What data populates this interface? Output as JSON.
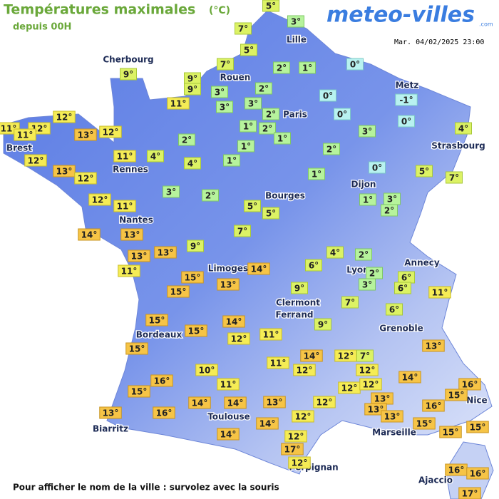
{
  "header": {
    "title": "Températures maximales",
    "unit": "(°C)",
    "subtitle": "depuis 00H",
    "logo": "meteo-villes",
    "logo_suffix": ".com",
    "timestamp": "Mar. 04/02/2025 23:00"
  },
  "cities": [
    "Lille",
    "Cherbourg",
    "Rouen",
    "Paris",
    "Metz",
    "Brest",
    "Rennes",
    "Strasbourg",
    "Dijon",
    "Bourges",
    "Nantes",
    "Annecy",
    "Limoges",
    "Lyon",
    "Clermont",
    "Ferrand",
    "Grenoble",
    "Bordeaux",
    "Toulouse",
    "Biarritz",
    "Marseille",
    "Nice",
    "Perpignan",
    "Ajaccio"
  ],
  "temperatures": [
    {
      "value": 5,
      "label": "5°"
    },
    {
      "value": 3,
      "label": "3°"
    },
    {
      "value": 7,
      "label": "7°"
    },
    {
      "value": 5,
      "label": "5°"
    },
    {
      "value": 9,
      "label": "9°"
    },
    {
      "value": 7,
      "label": "7°"
    },
    {
      "value": 2,
      "label": "2°"
    },
    {
      "value": 1,
      "label": "1°"
    },
    {
      "value": 0,
      "label": "0°"
    },
    {
      "value": 9,
      "label": "9°"
    },
    {
      "value": 9,
      "label": "9°"
    },
    {
      "value": 3,
      "label": "3°"
    },
    {
      "value": 2,
      "label": "2°"
    },
    {
      "value": 11,
      "label": "11°"
    },
    {
      "value": 3,
      "label": "3°"
    },
    {
      "value": 3,
      "label": "3°"
    },
    {
      "value": 2,
      "label": "2°"
    },
    {
      "value": 0,
      "label": "0°"
    },
    {
      "value": -1,
      "label": "-1°"
    },
    {
      "value": 0,
      "label": "0°"
    },
    {
      "value": 0,
      "label": "0°"
    },
    {
      "value": 12,
      "label": "12°"
    },
    {
      "value": 11,
      "label": "11°"
    },
    {
      "value": 12,
      "label": "12°"
    },
    {
      "value": 11,
      "label": "11°"
    },
    {
      "value": 13,
      "label": "13°"
    },
    {
      "value": 12,
      "label": "12°"
    },
    {
      "value": 1,
      "label": "1°"
    },
    {
      "value": 2,
      "label": "2°"
    },
    {
      "value": 1,
      "label": "1°"
    },
    {
      "value": 3,
      "label": "3°"
    },
    {
      "value": 4,
      "label": "4°"
    },
    {
      "value": 2,
      "label": "2°"
    },
    {
      "value": 1,
      "label": "1°"
    },
    {
      "value": 12,
      "label": "12°"
    },
    {
      "value": 13,
      "label": "13°"
    },
    {
      "value": 11,
      "label": "11°"
    },
    {
      "value": 4,
      "label": "4°"
    },
    {
      "value": 4,
      "label": "4°"
    },
    {
      "value": 1,
      "label": "1°"
    },
    {
      "value": 2,
      "label": "2°"
    },
    {
      "value": 0,
      "label": "0°"
    },
    {
      "value": 5,
      "label": "5°"
    },
    {
      "value": 7,
      "label": "7°"
    },
    {
      "value": 12,
      "label": "12°"
    },
    {
      "value": 1,
      "label": "1°"
    },
    {
      "value": 3,
      "label": "3°"
    },
    {
      "value": 2,
      "label": "2°"
    },
    {
      "value": 12,
      "label": "12°"
    },
    {
      "value": 11,
      "label": "11°"
    },
    {
      "value": 1,
      "label": "1°"
    },
    {
      "value": 3,
      "label": "3°"
    },
    {
      "value": 2,
      "label": "2°"
    },
    {
      "value": 5,
      "label": "5°"
    },
    {
      "value": 5,
      "label": "5°"
    },
    {
      "value": 14,
      "label": "14°"
    },
    {
      "value": 13,
      "label": "13°"
    },
    {
      "value": 7,
      "label": "7°"
    },
    {
      "value": 9,
      "label": "9°"
    },
    {
      "value": 13,
      "label": "13°"
    },
    {
      "value": 13,
      "label": "13°"
    },
    {
      "value": 4,
      "label": "4°"
    },
    {
      "value": 2,
      "label": "2°"
    },
    {
      "value": 11,
      "label": "11°"
    },
    {
      "value": 6,
      "label": "6°"
    },
    {
      "value": 2,
      "label": "2°"
    },
    {
      "value": 6,
      "label": "6°"
    },
    {
      "value": 14,
      "label": "14°"
    },
    {
      "value": 15,
      "label": "15°"
    },
    {
      "value": 6,
      "label": "6°"
    },
    {
      "value": 3,
      "label": "3°"
    },
    {
      "value": 11,
      "label": "11°"
    },
    {
      "value": 15,
      "label": "15°"
    },
    {
      "value": 13,
      "label": "13°"
    },
    {
      "value": 9,
      "label": "9°"
    },
    {
      "value": 7,
      "label": "7°"
    },
    {
      "value": 6,
      "label": "6°"
    },
    {
      "value": 14,
      "label": "14°"
    },
    {
      "value": 9,
      "label": "9°"
    },
    {
      "value": 15,
      "label": "15°"
    },
    {
      "value": 15,
      "label": "15°"
    },
    {
      "value": 11,
      "label": "11°"
    },
    {
      "value": 12,
      "label": "12°"
    },
    {
      "value": 13,
      "label": "13°"
    },
    {
      "value": 15,
      "label": "15°"
    },
    {
      "value": 14,
      "label": "14°"
    },
    {
      "value": 12,
      "label": "12°"
    },
    {
      "value": 7,
      "label": "7°"
    },
    {
      "value": 11,
      "label": "11°"
    },
    {
      "value": 12,
      "label": "12°"
    },
    {
      "value": 12,
      "label": "12°"
    },
    {
      "value": 14,
      "label": "14°"
    },
    {
      "value": 10,
      "label": "10°"
    },
    {
      "value": 16,
      "label": "16°"
    },
    {
      "value": 11,
      "label": "11°"
    },
    {
      "value": 12,
      "label": "12°"
    },
    {
      "value": 12,
      "label": "12°"
    },
    {
      "value": 16,
      "label": "16°"
    },
    {
      "value": 15,
      "label": "15°"
    },
    {
      "value": 15,
      "label": "15°"
    },
    {
      "value": 13,
      "label": "13°"
    },
    {
      "value": 12,
      "label": "12°"
    },
    {
      "value": 14,
      "label": "14°"
    },
    {
      "value": 14,
      "label": "14°"
    },
    {
      "value": 13,
      "label": "13°"
    },
    {
      "value": 13,
      "label": "13°"
    },
    {
      "value": 16,
      "label": "16°"
    },
    {
      "value": 13,
      "label": "13°"
    },
    {
      "value": 16,
      "label": "16°"
    },
    {
      "value": 12,
      "label": "12°"
    },
    {
      "value": 13,
      "label": "13°"
    },
    {
      "value": 14,
      "label": "14°"
    },
    {
      "value": 15,
      "label": "15°"
    },
    {
      "value": 15,
      "label": "15°"
    },
    {
      "value": 15,
      "label": "15°"
    },
    {
      "value": 14,
      "label": "14°"
    },
    {
      "value": 12,
      "label": "12°"
    },
    {
      "value": 17,
      "label": "17°"
    },
    {
      "value": 12,
      "label": "12°"
    },
    {
      "value": 16,
      "label": "16°"
    },
    {
      "value": 16,
      "label": "16°"
    },
    {
      "value": 17,
      "label": "17°"
    }
  ],
  "footer": "Pour afficher le nom de la ville : survolez avec la souris"
}
